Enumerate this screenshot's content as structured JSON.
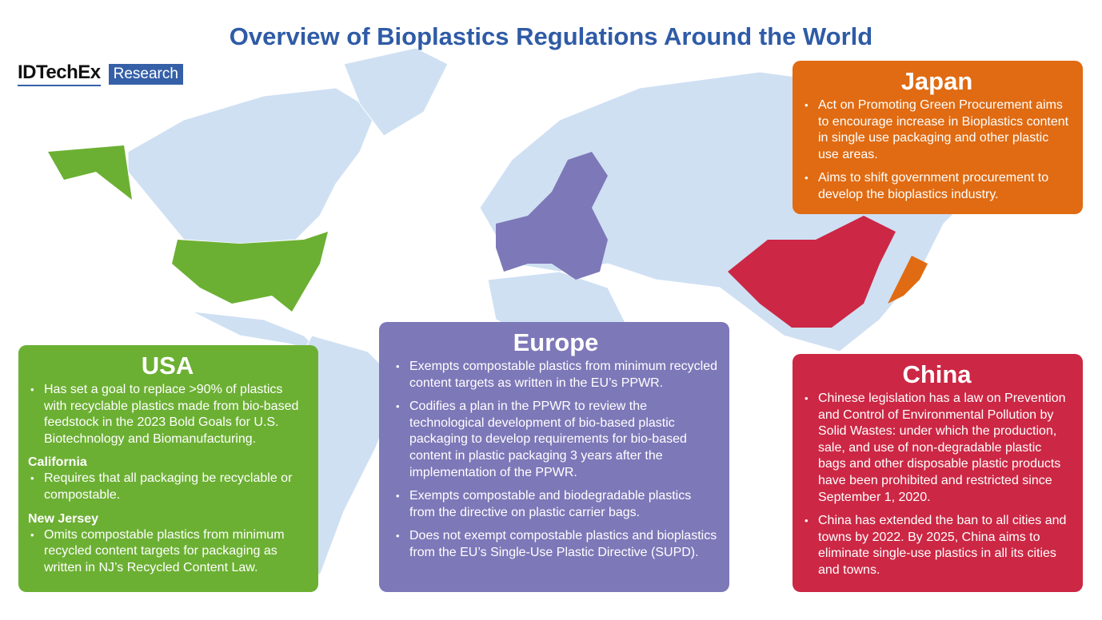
{
  "title": "Overview of Bioplastics Regulations Around the World",
  "logo": {
    "brand": "IDTechEx",
    "tag": "Research"
  },
  "colors": {
    "title": "#2f5ba6",
    "usa": "#6cb033",
    "europe": "#7d78b8",
    "japan": "#e06b12",
    "china": "#cc2744",
    "land": "#cfe0f3"
  },
  "usa": {
    "heading": "USA",
    "bullets": [
      "Has set a goal to replace >90% of plastics with recyclable plastics made from bio-based feedstock in the 2023 Bold Goals for U.S. Biotechnology and Biomanufacturing."
    ],
    "california": {
      "heading": "California",
      "bullets": [
        "Requires that all packaging be recyclable or compostable."
      ]
    },
    "new_jersey": {
      "heading": "New Jersey",
      "bullets": [
        "Omits compostable plastics from minimum recycled content targets for packaging as written in NJ’s Recycled Content Law."
      ]
    }
  },
  "europe": {
    "heading": "Europe",
    "bullets": [
      "Exempts compostable plastics from minimum recycled content targets as written in the EU’s PPWR.",
      "Codifies a plan in the PPWR to review the technological development of bio-based plastic packaging to develop requirements for bio-based content in plastic packaging 3 years after the implementation of the PPWR.",
      "Exempts compostable and biodegradable plastics from the directive on plastic carrier bags.",
      "Does not exempt compostable plastics and bioplastics from the EU’s Single-Use Plastic Directive (SUPD)."
    ]
  },
  "japan": {
    "heading": "Japan",
    "bullets": [
      "Act on Promoting Green Procurement aims to encourage increase in Bioplastics content in single use packaging and other plastic use areas.",
      "Aims to shift government procurement to develop the bioplastics industry."
    ]
  },
  "china": {
    "heading": "China",
    "bullets": [
      "Chinese legislation has a law on Prevention and Control of Environmental Pollution by Solid Wastes: under which the production, sale, and use of non-degradable plastic bags and other disposable plastic products have been prohibited and restricted since September 1, 2020.",
      "China has extended the ban to all cities and towns by 2022. By 2025, China aims to eliminate single-use plastics in all its cities and towns."
    ]
  }
}
